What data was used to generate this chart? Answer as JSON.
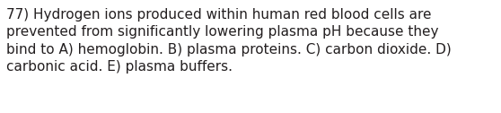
{
  "line1": "77) Hydrogen ions produced within human red blood cells are",
  "line2": "prevented from significantly lowering plasma pH because they",
  "line3": "bind to A) hemoglobin. B) plasma proteins. C) carbon dioxide. D)",
  "line4": "carbonic acid. E) plasma buffers.",
  "background_color": "#ffffff",
  "text_color": "#231f20",
  "font_size": 11.0,
  "fig_width": 5.58,
  "fig_height": 1.26,
  "dpi": 100
}
